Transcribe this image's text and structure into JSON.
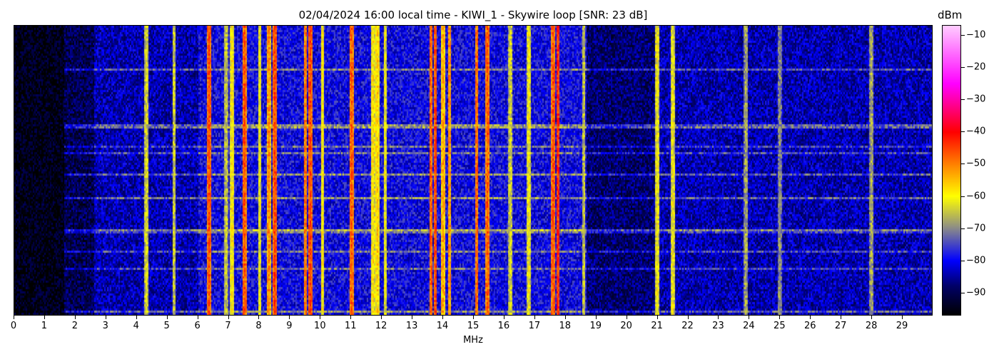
{
  "chart_data": {
    "type": "heatmap",
    "title": "02/04/2024 16:00 local time - KIWI_1 - Skywire loop [SNR: 23 dB]",
    "xlabel": "MHz",
    "ylabel": "",
    "xlim": [
      0,
      30
    ],
    "x_ticks": [
      "0",
      "1",
      "2",
      "3",
      "4",
      "5",
      "6",
      "7",
      "8",
      "9",
      "10",
      "11",
      "12",
      "13",
      "14",
      "15",
      "16",
      "17",
      "18",
      "19",
      "20",
      "21",
      "22",
      "23",
      "24",
      "25",
      "26",
      "27",
      "28",
      "29"
    ],
    "colorbar": {
      "label": "dBm",
      "range": [
        -97,
        -7
      ],
      "ticks": [
        "−10",
        "−20",
        "−30",
        "−40",
        "−50",
        "−60",
        "−70",
        "−80",
        "−90"
      ],
      "tick_values": [
        -10,
        -20,
        -30,
        -40,
        -50,
        -60,
        -70,
        -80,
        -90
      ],
      "colormap_stops": [
        {
          "value": -97,
          "color": "#000000"
        },
        {
          "value": -88,
          "color": "#000066"
        },
        {
          "value": -80,
          "color": "#0000ff"
        },
        {
          "value": -70,
          "color": "#8a8a8a"
        },
        {
          "value": -60,
          "color": "#ffff00"
        },
        {
          "value": -50,
          "color": "#ff8000"
        },
        {
          "value": -40,
          "color": "#ff0000"
        },
        {
          "value": -25,
          "color": "#ff00ff"
        },
        {
          "value": -7,
          "color": "#ffccff"
        }
      ]
    },
    "noise_floor_dbm": [
      {
        "from_mhz": 0,
        "to_mhz": 1.6,
        "level": -95
      },
      {
        "from_mhz": 1.6,
        "to_mhz": 2.6,
        "level": -90
      },
      {
        "from_mhz": 2.6,
        "to_mhz": 6,
        "level": -84
      },
      {
        "from_mhz": 6,
        "to_mhz": 18.7,
        "level": -80
      },
      {
        "from_mhz": 18.7,
        "to_mhz": 21,
        "level": -88
      },
      {
        "from_mhz": 21,
        "to_mhz": 30,
        "level": -84
      }
    ],
    "signals": [
      {
        "mhz": 4.3,
        "level": -62
      },
      {
        "mhz": 5.2,
        "level": -63
      },
      {
        "mhz": 6.35,
        "level": -45
      },
      {
        "mhz": 6.9,
        "level": -64
      },
      {
        "mhz": 7.1,
        "level": -58
      },
      {
        "mhz": 7.5,
        "level": -45
      },
      {
        "mhz": 8.0,
        "level": -60
      },
      {
        "mhz": 8.3,
        "level": -50
      },
      {
        "mhz": 8.5,
        "level": -44
      },
      {
        "mhz": 9.5,
        "level": -48
      },
      {
        "mhz": 9.65,
        "level": -44
      },
      {
        "mhz": 10.05,
        "level": -58
      },
      {
        "mhz": 11.0,
        "level": -46
      },
      {
        "mhz": 11.7,
        "level": -58
      },
      {
        "mhz": 11.85,
        "level": -56
      },
      {
        "mhz": 12.1,
        "level": -60
      },
      {
        "mhz": 13.6,
        "level": -46
      },
      {
        "mhz": 13.75,
        "level": -44
      },
      {
        "mhz": 14.0,
        "level": -52
      },
      {
        "mhz": 14.2,
        "level": -50
      },
      {
        "mhz": 15.1,
        "level": -47
      },
      {
        "mhz": 15.45,
        "level": -46
      },
      {
        "mhz": 16.2,
        "level": -62
      },
      {
        "mhz": 16.8,
        "level": -60
      },
      {
        "mhz": 17.6,
        "level": -45
      },
      {
        "mhz": 17.75,
        "level": -42
      },
      {
        "mhz": 18.6,
        "level": -64
      },
      {
        "mhz": 21.0,
        "level": -60
      },
      {
        "mhz": 21.5,
        "level": -60
      },
      {
        "mhz": 23.9,
        "level": -66
      },
      {
        "mhz": 25.0,
        "level": -68
      },
      {
        "mhz": 28.0,
        "level": -66
      }
    ]
  }
}
